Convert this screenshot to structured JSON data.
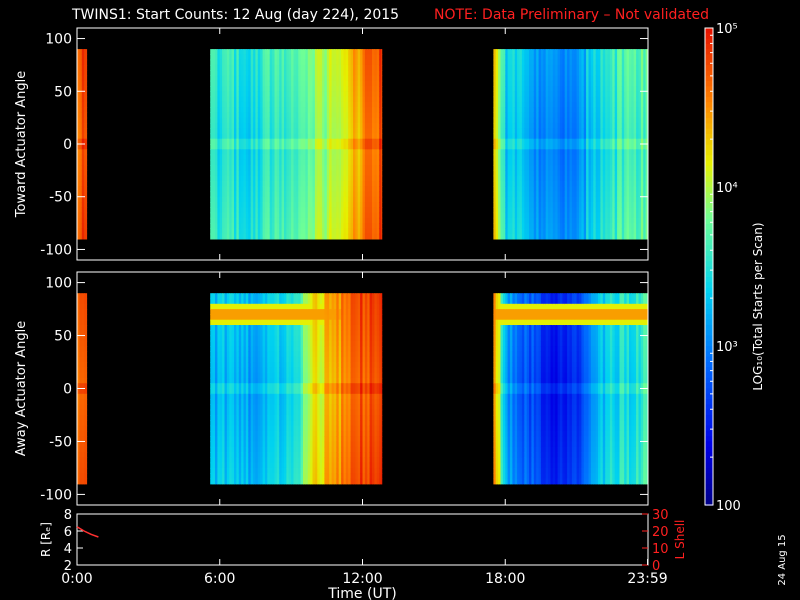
{
  "title": "TWINS1: Start Counts: 12 Aug (day 224), 2015",
  "note": "NOTE: Data Preliminary – Not validated",
  "side_date": "24 Aug 15",
  "colors": {
    "note": "#ff2020",
    "lshell": "#ff2020",
    "rtrace": "#ff3030",
    "frame": "#ffffff"
  },
  "chart_data": [
    {
      "type": "heatmap",
      "ylabel": "Toward Actuator Angle",
      "ylim": [
        -110,
        110
      ],
      "yticks": [
        100,
        50,
        0,
        -50,
        -100
      ],
      "x_range_hours": [
        0,
        24
      ],
      "data_y_range": [
        -90,
        90
      ],
      "blocks": [
        [
          0.0,
          0.4
        ],
        [
          5.6,
          12.8
        ],
        [
          17.5,
          23.98
        ]
      ],
      "trend_log": [
        [
          0.0,
          4.7
        ],
        [
          0.4,
          4.7
        ],
        [
          5.6,
          3.45
        ],
        [
          6.5,
          3.4
        ],
        [
          7.5,
          3.35
        ],
        [
          8.0,
          3.5
        ],
        [
          9.0,
          3.55
        ],
        [
          9.5,
          3.7
        ],
        [
          10.0,
          3.85
        ],
        [
          11.0,
          4.0
        ],
        [
          11.6,
          4.25
        ],
        [
          12.2,
          4.55
        ],
        [
          12.8,
          4.75
        ],
        [
          17.5,
          4.2
        ],
        [
          18.0,
          3.3
        ],
        [
          19.0,
          3.2
        ],
        [
          19.5,
          2.95
        ],
        [
          21.0,
          2.85
        ],
        [
          21.5,
          3.3
        ],
        [
          22.5,
          3.5
        ],
        [
          23.98,
          3.6
        ]
      ]
    },
    {
      "type": "heatmap",
      "ylabel": "Away Actuator Angle",
      "ylim": [
        -110,
        110
      ],
      "yticks": [
        100,
        50,
        0,
        -50,
        -100
      ],
      "x_range_hours": [
        0,
        24
      ],
      "data_y_range": [
        -90,
        90
      ],
      "blocks": [
        [
          0.0,
          0.4
        ],
        [
          5.6,
          12.8
        ],
        [
          17.5,
          23.98
        ]
      ],
      "trend_log": [
        [
          0.0,
          4.7
        ],
        [
          0.4,
          4.7
        ],
        [
          5.6,
          3.2
        ],
        [
          6.5,
          3.15
        ],
        [
          7.5,
          3.1
        ],
        [
          8.0,
          3.25
        ],
        [
          9.0,
          3.35
        ],
        [
          9.5,
          3.7
        ],
        [
          10.0,
          4.1
        ],
        [
          11.0,
          4.4
        ],
        [
          11.6,
          4.6
        ],
        [
          12.2,
          4.75
        ],
        [
          12.8,
          4.8
        ],
        [
          17.5,
          4.5
        ],
        [
          18.0,
          3.0
        ],
        [
          19.0,
          2.7
        ],
        [
          19.5,
          2.5
        ],
        [
          21.0,
          2.45
        ],
        [
          21.5,
          3.0
        ],
        [
          22.5,
          3.35
        ],
        [
          23.98,
          3.5
        ]
      ],
      "band_log": 4.6,
      "band_angle": 70
    },
    {
      "type": "line",
      "ylabel": "R [Rₑ]",
      "y2label": "L Shell",
      "ylim": [
        2,
        8
      ],
      "yticks": [
        8,
        6,
        4,
        2
      ],
      "y2lim": [
        0,
        30
      ],
      "y2ticks": [
        30,
        20,
        10,
        0
      ],
      "xlabel": "Time (UT)",
      "xticks": [
        "0:00",
        "6:00",
        "12:00",
        "18:00",
        "23:59"
      ],
      "xtick_hours": [
        0,
        6,
        12,
        18,
        23.98
      ],
      "series": [
        {
          "x": [
            0.0,
            0.3,
            0.6,
            0.9
          ],
          "y": [
            6.5,
            6.0,
            5.6,
            5.3
          ]
        }
      ]
    }
  ],
  "colorbar": {
    "label": "LOG₁₀(Total Starts per Scan)",
    "type": "log",
    "range": [
      100,
      100000
    ],
    "tick_labels": [
      "10⁵",
      "10⁴",
      "10³",
      "100"
    ],
    "tick_values": [
      100000,
      10000,
      1000,
      100
    ]
  }
}
